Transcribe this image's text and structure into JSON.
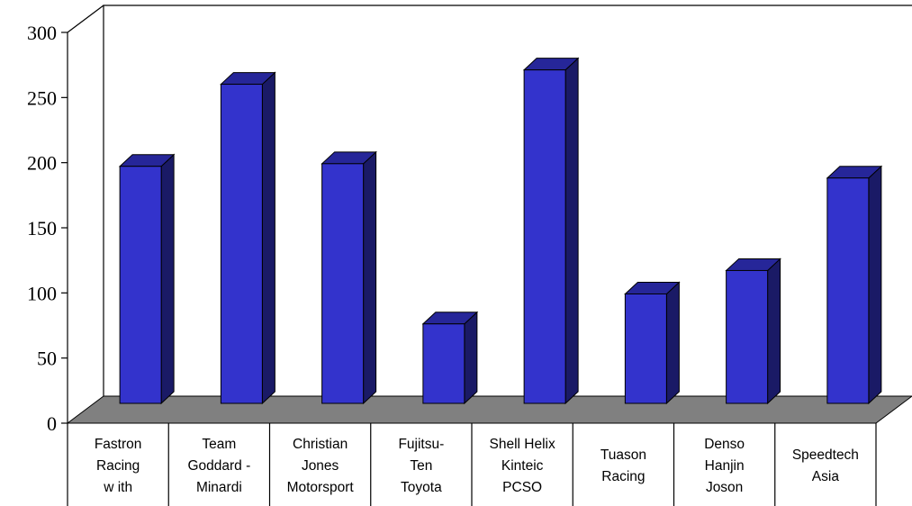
{
  "chart_data": {
    "type": "bar",
    "title": "",
    "xlabel": "",
    "ylabel": "",
    "ylim": [
      0,
      300
    ],
    "y_ticks": [
      0,
      50,
      100,
      150,
      200,
      250,
      300
    ],
    "categories": [
      [
        "Fastron",
        "Racing",
        "w ith"
      ],
      [
        "Team",
        "Goddard -",
        "Minardi"
      ],
      [
        "Christian",
        "Jones",
        "Motorsport"
      ],
      [
        "Fujitsu-",
        "Ten",
        "Toyota"
      ],
      [
        "Shell Helix",
        "Kinteic",
        "PCSO"
      ],
      [
        "Tuason",
        "Racing"
      ],
      [
        "Denso",
        "Hanjin",
        "Joson"
      ],
      [
        "Speedtech",
        "Asia"
      ]
    ],
    "values": [
      182,
      245,
      184,
      61,
      256,
      84,
      102,
      173
    ],
    "grid": false,
    "legend": "none",
    "style": "3d-column",
    "colors": {
      "bar_front": "#3333cc",
      "bar_side": "#1a1a66",
      "bar_top": "#262699",
      "floor": "#808080",
      "axis": "#000000"
    }
  }
}
